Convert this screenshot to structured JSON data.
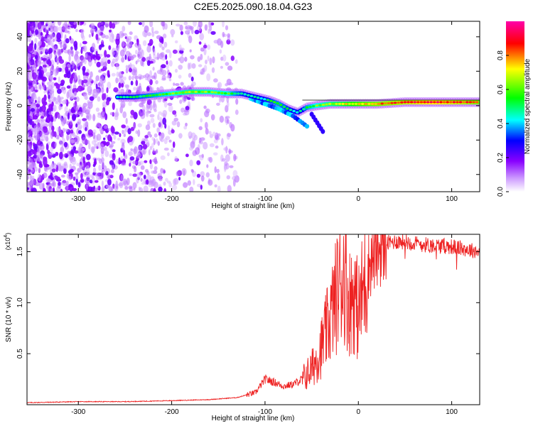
{
  "title": "C2E5.2025.090.18.04.G23",
  "chart_data": [
    {
      "type": "heatmap",
      "xlabel": "Height of straight line (km)",
      "ylabel": "Frequency (Hz)",
      "xlim": [
        -355,
        130
      ],
      "ylim": [
        -50,
        49
      ],
      "xticks": [
        -300,
        -200,
        -100,
        0,
        100
      ],
      "xtick_labels": [
        "-300",
        "-200",
        "-100",
        "0",
        "100"
      ],
      "yticks": [
        -40,
        -20,
        0,
        20,
        40
      ],
      "ytick_labels": [
        "-40",
        "-20",
        "0",
        "20",
        "40"
      ],
      "colorbar": {
        "label": "Normalized spectral amplitude",
        "range": [
          0.0,
          1.0
        ],
        "ticks": [
          0.0,
          0.2,
          0.4,
          0.6,
          0.8
        ],
        "tick_labels": [
          "0.0",
          "0.2",
          "0.4",
          "0.6",
          "0.8"
        ],
        "colormap": [
          "#ffffff",
          "#8800ff",
          "#0000ff",
          "#00ffff",
          "#00ff00",
          "#ffff00",
          "#ff0000",
          "#ff00aa"
        ]
      },
      "ridge": {
        "x": [
          -260,
          -240,
          -220,
          -200,
          -180,
          -160,
          -140,
          -125,
          -110,
          -95,
          -85,
          -75,
          -65,
          -55,
          -45,
          -30,
          -15,
          0,
          20,
          50,
          80,
          110,
          130
        ],
        "frequency": [
          5,
          5,
          6,
          7,
          8,
          8,
          7,
          7,
          5,
          3,
          1,
          -2,
          -4,
          -1,
          0,
          1,
          1,
          1,
          1,
          2,
          2,
          2,
          2
        ],
        "amplitude": [
          0.45,
          0.5,
          0.55,
          0.6,
          0.65,
          0.62,
          0.6,
          0.5,
          0.45,
          0.5,
          0.55,
          0.5,
          0.4,
          0.55,
          0.6,
          0.65,
          0.7,
          0.75,
          0.8,
          0.85,
          0.9,
          0.85,
          0.8
        ]
      },
      "grid": false
    },
    {
      "type": "line",
      "xlabel": "Height of straight line (km)",
      "ylabel": "SNR (10 * v/v)",
      "y_multiplier": "(x10^4)",
      "xlim": [
        -355,
        130
      ],
      "ylim": [
        0,
        1.67
      ],
      "xticks": [
        -300,
        -200,
        -100,
        0,
        100
      ],
      "xtick_labels": [
        "-300",
        "-200",
        "-100",
        "0",
        "100"
      ],
      "yticks": [
        0.5,
        1.0,
        1.5
      ],
      "ytick_labels": [
        "0.5",
        "1.0",
        "1.5"
      ],
      "color": "#ee2222",
      "series": [
        {
          "x": [
            -355,
            -300,
            -250,
            -200,
            -160,
            -130,
            -110,
            -100,
            -90,
            -80,
            -70,
            -60,
            -50,
            -40,
            -30,
            -20,
            -15,
            -10,
            -5,
            0,
            10,
            20,
            30,
            40,
            50,
            60,
            80,
            100,
            130
          ],
          "y": [
            0.02,
            0.03,
            0.03,
            0.04,
            0.05,
            0.07,
            0.12,
            0.25,
            0.22,
            0.18,
            0.2,
            0.25,
            0.35,
            0.55,
            0.85,
            1.2,
            1.3,
            1.0,
            1.1,
            0.9,
            1.35,
            1.5,
            1.58,
            1.6,
            1.6,
            1.58,
            1.56,
            1.55,
            1.5
          ]
        }
      ],
      "grid": false
    }
  ]
}
